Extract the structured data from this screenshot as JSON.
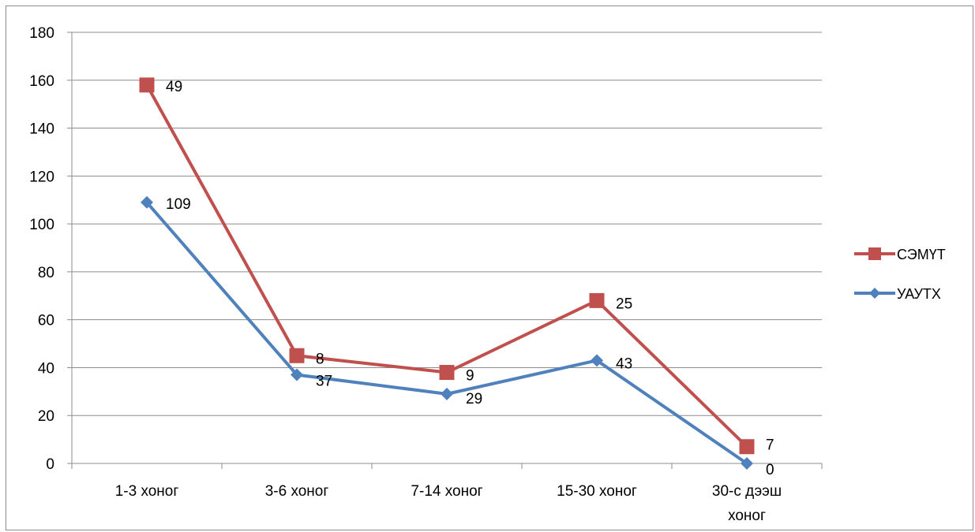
{
  "chart_data": {
    "type": "line",
    "categories": [
      [
        "1-3 хоног"
      ],
      [
        "3-6 хоног"
      ],
      [
        "7-14 хоног"
      ],
      [
        "15-30 хоног"
      ],
      [
        "30-с дээш",
        "хоног"
      ]
    ],
    "ylim": [
      0,
      180
    ],
    "yticks": [
      0,
      20,
      40,
      60,
      80,
      100,
      120,
      140,
      160,
      180
    ],
    "grid": true,
    "legend_position": "right",
    "series": [
      {
        "name": "СЭМҮТ",
        "color": "#c0504d",
        "marker": "square",
        "values": [
          158,
          45,
          38,
          68,
          7
        ],
        "labels": [
          "49",
          "8",
          "9",
          "25",
          "7"
        ]
      },
      {
        "name": "УАУТХ",
        "color": "#4f81bd",
        "marker": "diamond",
        "values": [
          109,
          37,
          29,
          43,
          0
        ],
        "labels": [
          "109",
          "37",
          "29",
          "43",
          "0"
        ]
      }
    ]
  }
}
